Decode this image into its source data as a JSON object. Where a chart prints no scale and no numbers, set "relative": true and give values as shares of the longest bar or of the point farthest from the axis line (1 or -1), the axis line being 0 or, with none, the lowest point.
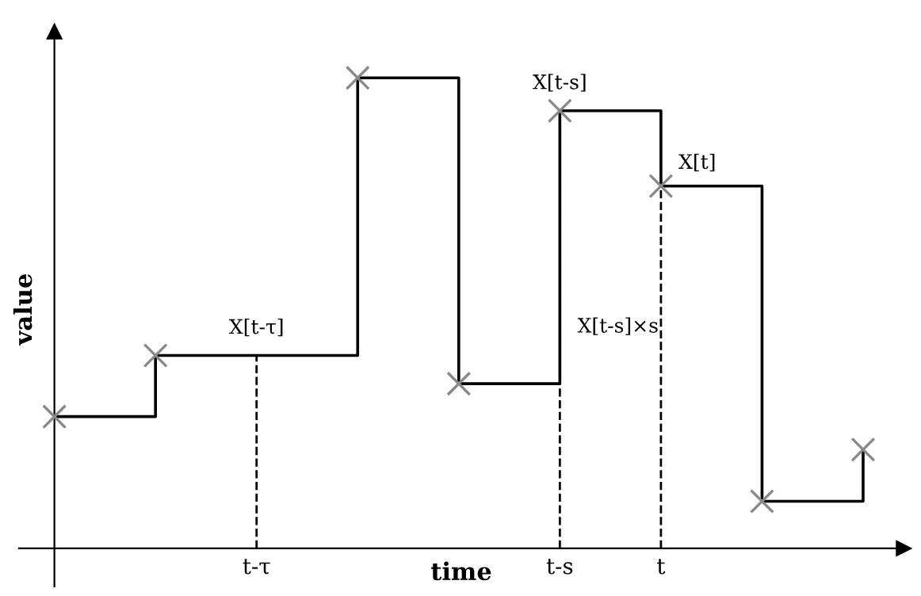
{
  "chart_data": {
    "type": "step",
    "relative": true,
    "xlabel": "time",
    "ylabel": "value",
    "categories": [
      null,
      null,
      "t-τ",
      null,
      null,
      "t-s",
      "t",
      null,
      null
    ],
    "series": [
      {
        "color": "#000000",
        "marker": "none",
        "values": [
          0.28,
          0.41,
          0.41,
          1,
          0.35,
          0.93,
          0.77,
          0.1,
          0.21
        ]
      },
      {
        "type": "scatter",
        "marker": "cross",
        "color": "#888888",
        "values": [
          0.28,
          0.41,
          null,
          1,
          0.35,
          0.93,
          0.77,
          0.1,
          0.21
        ]
      }
    ],
    "ref_lines": [
      {
        "axis": "x",
        "value": "t-τ",
        "line_style": "dashed",
        "color": "#000000"
      },
      {
        "axis": "x",
        "value": "t-s",
        "line_style": "dashed",
        "color": "#000000"
      },
      {
        "axis": "x",
        "value": "t",
        "line_style": "dashed",
        "color": "#000000"
      }
    ],
    "annotations": [
      {
        "text": "X[t-τ]",
        "x": "t-τ",
        "y": 0.41
      },
      {
        "text": "X[t-s]",
        "x": "t-s",
        "y": 0.93
      },
      {
        "text": "X[t]",
        "x": "t",
        "y": 0.77
      },
      {
        "text": "X[t-s]×s",
        "x": "t-s",
        "y": 0.45
      }
    ],
    "grid": false
  }
}
